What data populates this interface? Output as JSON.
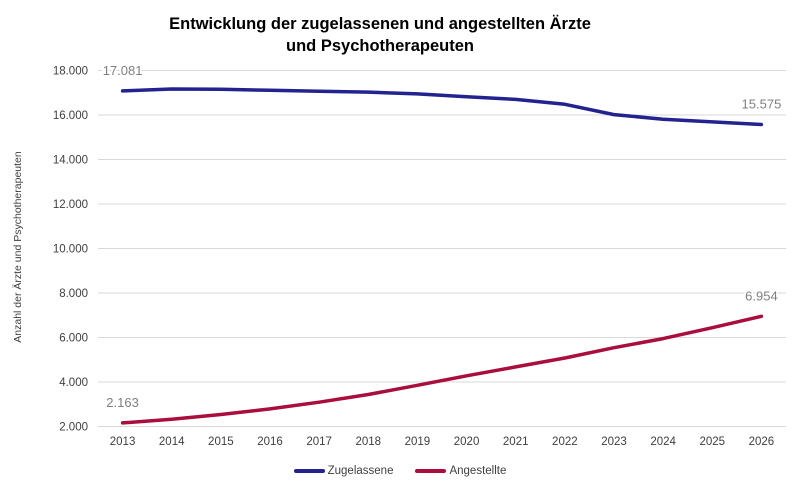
{
  "chart_data": {
    "type": "line",
    "title": "Entwicklung der zugelassenen und angestellten Ärzte und Psychotherapeuten",
    "title_lines": [
      "Entwicklung der zugelassenen und angestellten Ärzte",
      "und Psychotherapeuten"
    ],
    "ylabel": "Anzahl der Ärzte  und Psychotherapeuten",
    "xlabel": "",
    "categories": [
      "2013",
      "2014",
      "2015",
      "2016",
      "2017",
      "2018",
      "2019",
      "2020",
      "2021",
      "2022",
      "2023",
      "2024",
      "2025",
      "2026"
    ],
    "series": [
      {
        "name": "Zugelassene",
        "color": "#232390",
        "values": [
          17081,
          17170,
          17160,
          17110,
          17070,
          17030,
          16950,
          16820,
          16700,
          16480,
          16020,
          15810,
          15690,
          15575
        ],
        "point_labels": {
          "start": "17.081",
          "end": "15.575"
        }
      },
      {
        "name": "Angestellte",
        "color": "#A90E3C",
        "values": [
          2163,
          2330,
          2540,
          2790,
          3090,
          3440,
          3850,
          4280,
          4680,
          5080,
          5540,
          5950,
          6440,
          6954
        ],
        "point_labels": {
          "start": "2.163",
          "end": "6.954"
        }
      }
    ],
    "y_axis": {
      "min": 2000,
      "max": 18000,
      "step": 2000,
      "tick_labels": [
        "18.000",
        "16.000",
        "14.000",
        "12.000",
        "10.000",
        "8.000",
        "6.000",
        "4.000",
        "2.000"
      ]
    },
    "grid": true,
    "legend_position": "bottom",
    "colors": {
      "gridline": "#D9D9D9",
      "axis_text": "#3F3F3F",
      "data_label": "#7F7F7F",
      "title_text": "#000000"
    }
  }
}
